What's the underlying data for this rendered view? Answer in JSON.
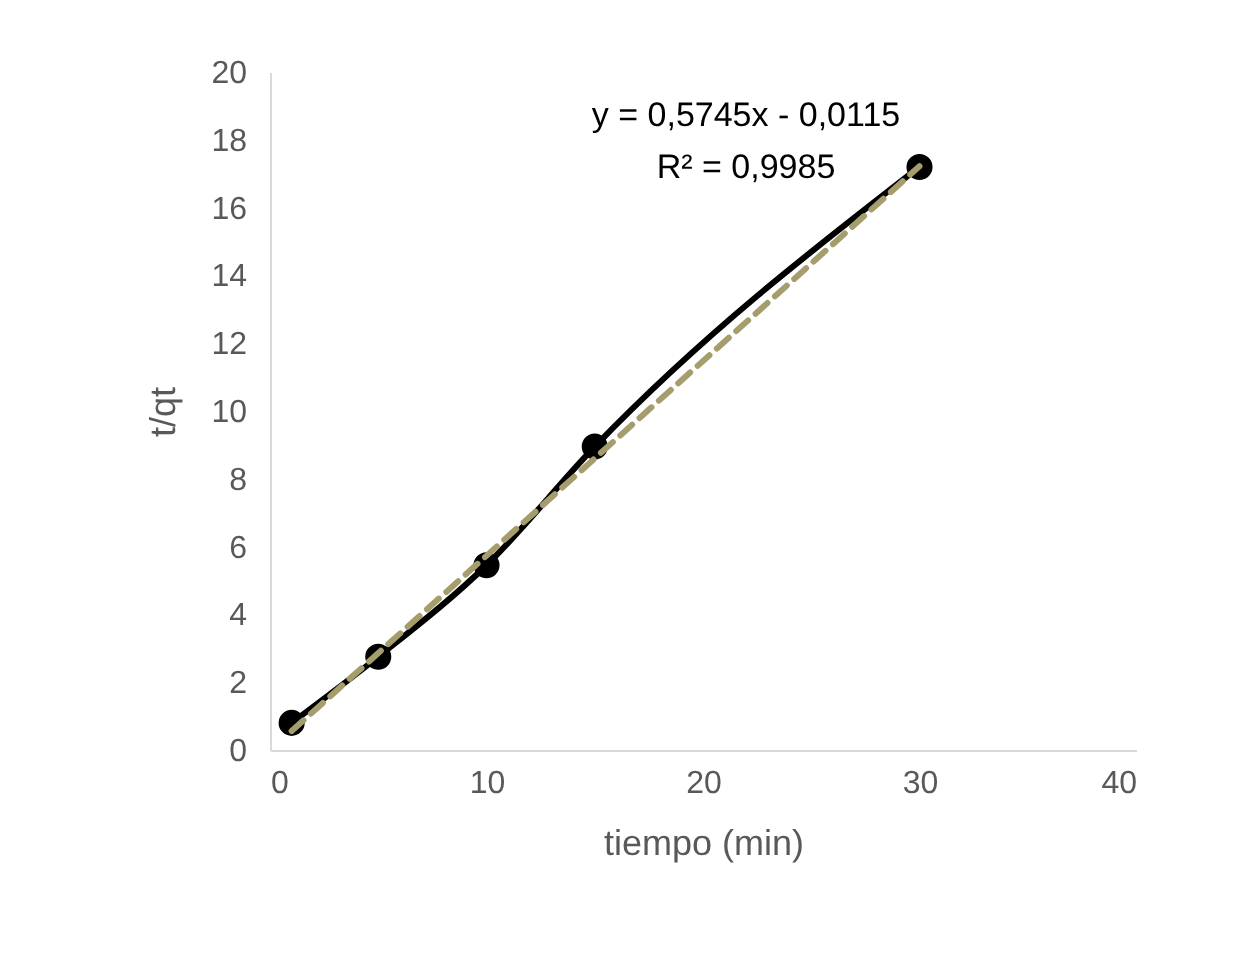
{
  "chart_data": {
    "type": "line",
    "xlabel": "tiempo (min)",
    "ylabel": "t/qt",
    "x": [
      1,
      5,
      10,
      15,
      30
    ],
    "series": [
      {
        "color": "#000000",
        "values": [
          0.8,
          2.75,
          5.45,
          8.95,
          17.2
        ]
      },
      {
        "type": "line",
        "x": [
          1,
          30
        ],
        "values": [
          0.56,
          17.22
        ],
        "color": "#a59d6c",
        "line_style": "dashed",
        "marker": "none"
      }
    ],
    "marker": "circle",
    "xlim": [
      0,
      40
    ],
    "xticks": [
      0,
      10,
      20,
      30,
      40
    ],
    "ylim": [
      0,
      20
    ],
    "yticks": [
      0,
      2,
      4,
      6,
      8,
      10,
      12,
      14,
      16,
      18,
      20
    ],
    "grid": false,
    "annotations": [
      "y = 0,5745x - 0,0115",
      "R² = 0,9985"
    ]
  }
}
